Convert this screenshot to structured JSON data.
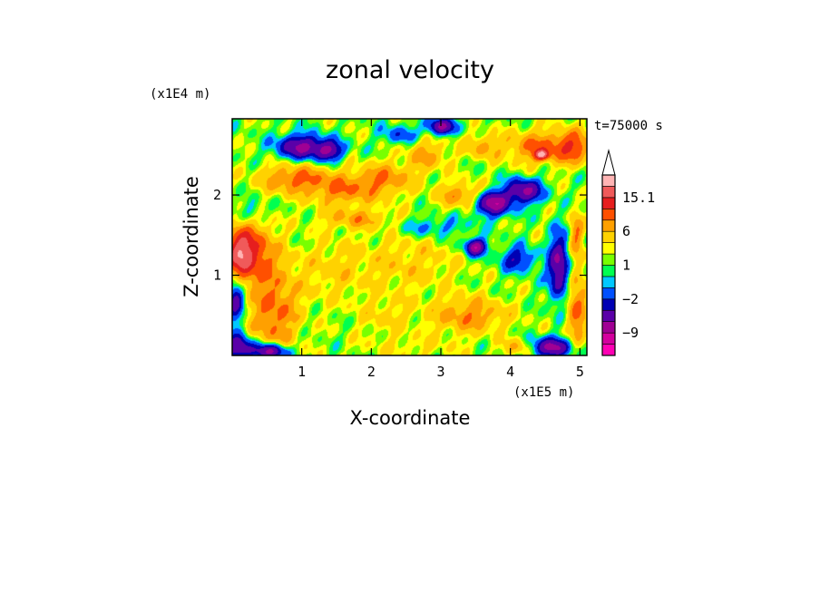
{
  "chart_data": {
    "type": "heatmap",
    "title": "zonal velocity",
    "xlabel": "X-coordinate",
    "ylabel": "Z-coordinate",
    "x_scale_label": "(x1E5 m)",
    "y_scale_label": "(x1E4 m)",
    "time_label": "t=75000 s",
    "xlim": [
      0,
      5.1
    ],
    "ylim": [
      0,
      2.95
    ],
    "x_ticks": [
      {
        "value": 1,
        "label": "1"
      },
      {
        "value": 2,
        "label": "2"
      },
      {
        "value": 3,
        "label": "3"
      },
      {
        "value": 4,
        "label": "4"
      },
      {
        "value": 5,
        "label": "5"
      }
    ],
    "y_ticks": [
      {
        "value": 1,
        "label": "1"
      },
      {
        "value": 2,
        "label": "2"
      }
    ],
    "colorbar": {
      "levels": [
        -15,
        -12,
        -9,
        -6,
        -4,
        -2,
        -1,
        0,
        1,
        2,
        4,
        6,
        9,
        12,
        15.1
      ],
      "colors": [
        "#ff00b4",
        "#d4009e",
        "#a00094",
        "#5a00a8",
        "#0000b4",
        "#0050ff",
        "#00c8ff",
        "#00ff50",
        "#78ff00",
        "#ffff00",
        "#ffd200",
        "#ffa000",
        "#ff5000",
        "#e61e1e",
        "#f05a5a",
        "#ffb4b4"
      ],
      "labeled": [
        {
          "value": 15.1,
          "label": "15.1"
        },
        {
          "value": 6,
          "label": "6"
        },
        {
          "value": 1,
          "label": "1"
        },
        {
          "value": -2,
          "label": "−2"
        },
        {
          "value": -9,
          "label": "−9"
        }
      ],
      "extend_max": true
    },
    "features": [
      {
        "x": 0.6,
        "z": 0.55,
        "sx": 0.35,
        "sz": 0.6,
        "v": 6
      },
      {
        "x": 0.1,
        "z": 1.25,
        "sx": 0.2,
        "sz": 0.3,
        "v": 10
      },
      {
        "x": 0.3,
        "z": 1.3,
        "sx": 0.3,
        "sz": 0.35,
        "v": 7
      },
      {
        "x": 0.05,
        "z": 0.7,
        "sx": 0.12,
        "sz": 0.3,
        "v": -8
      },
      {
        "x": 0.1,
        "z": 0.1,
        "sx": 0.2,
        "sz": 0.15,
        "v": -10
      },
      {
        "x": 0.55,
        "z": 0.05,
        "sx": 0.25,
        "sz": 0.1,
        "v": -12
      },
      {
        "x": 1.4,
        "z": 1.05,
        "sx": 0.5,
        "sz": 0.4,
        "v": 2
      },
      {
        "x": 2.5,
        "z": 1.15,
        "sx": 0.8,
        "sz": 0.35,
        "v": 2.5
      },
      {
        "x": 3.4,
        "z": 0.5,
        "sx": 0.55,
        "sz": 0.22,
        "v": 5
      },
      {
        "x": 2.2,
        "z": 0.5,
        "sx": 0.4,
        "sz": 0.25,
        "v": 2
      },
      {
        "x": 2.6,
        "z": 0.1,
        "sx": 0.7,
        "sz": 0.15,
        "v": 1.5
      },
      {
        "x": 1.0,
        "z": 2.6,
        "sx": 0.35,
        "sz": 0.15,
        "v": -10
      },
      {
        "x": 1.4,
        "z": 2.55,
        "sx": 0.2,
        "sz": 0.12,
        "v": -8
      },
      {
        "x": 0.9,
        "z": 2.2,
        "sx": 0.5,
        "sz": 0.18,
        "v": 6
      },
      {
        "x": 1.6,
        "z": 2.05,
        "sx": 0.45,
        "sz": 0.2,
        "v": 5
      },
      {
        "x": 2.2,
        "z": 2.2,
        "sx": 0.4,
        "sz": 0.2,
        "v": 5
      },
      {
        "x": 2.8,
        "z": 2.5,
        "sx": 0.3,
        "sz": 0.2,
        "v": 4
      },
      {
        "x": 2.4,
        "z": 2.75,
        "sx": 0.25,
        "sz": 0.12,
        "v": -4
      },
      {
        "x": 3.0,
        "z": 2.85,
        "sx": 0.2,
        "sz": 0.1,
        "v": -10
      },
      {
        "x": 3.6,
        "z": 2.6,
        "sx": 0.25,
        "sz": 0.15,
        "v": 4
      },
      {
        "x": 3.3,
        "z": 2.0,
        "sx": 0.35,
        "sz": 0.15,
        "v": 5
      },
      {
        "x": 3.75,
        "z": 1.9,
        "sx": 0.25,
        "sz": 0.15,
        "v": -12
      },
      {
        "x": 4.2,
        "z": 2.05,
        "sx": 0.25,
        "sz": 0.15,
        "v": -10
      },
      {
        "x": 4.4,
        "z": 2.6,
        "sx": 0.45,
        "sz": 0.2,
        "v": 6
      },
      {
        "x": 4.45,
        "z": 2.5,
        "sx": 0.1,
        "sz": 0.06,
        "v": 12
      },
      {
        "x": 4.9,
        "z": 2.6,
        "sx": 0.25,
        "sz": 0.2,
        "v": 7
      },
      {
        "x": 3.5,
        "z": 1.35,
        "sx": 0.15,
        "sz": 0.1,
        "v": -12
      },
      {
        "x": 4.1,
        "z": 1.2,
        "sx": 0.25,
        "sz": 0.15,
        "v": -6
      },
      {
        "x": 4.7,
        "z": 1.1,
        "sx": 0.15,
        "sz": 0.4,
        "v": -10
      },
      {
        "x": 4.95,
        "z": 0.6,
        "sx": 0.15,
        "sz": 0.5,
        "v": 6
      },
      {
        "x": 4.6,
        "z": 0.1,
        "sx": 0.3,
        "sz": 0.12,
        "v": -10
      },
      {
        "x": 4.1,
        "z": 0.1,
        "sx": 0.2,
        "sz": 0.1,
        "v": 4
      },
      {
        "x": 1.8,
        "z": 1.7,
        "sx": 0.5,
        "sz": 0.12,
        "v": 4
      },
      {
        "x": 2.9,
        "z": 1.6,
        "sx": 0.5,
        "sz": 0.12,
        "v": -3
      },
      {
        "x": 0.3,
        "z": 1.8,
        "sx": 0.15,
        "sz": 0.15,
        "v": -3
      },
      {
        "x": 4.95,
        "z": 1.5,
        "sx": 0.1,
        "sz": 0.3,
        "v": 5
      }
    ]
  }
}
